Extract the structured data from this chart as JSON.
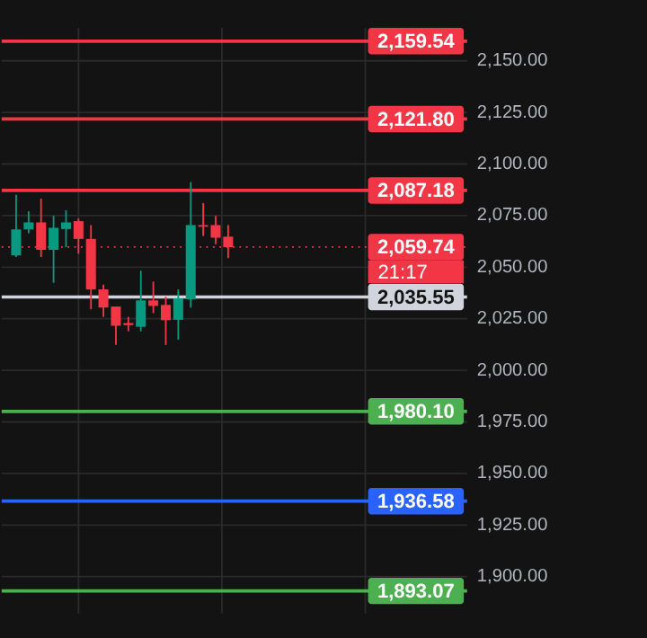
{
  "chart_data": {
    "type": "candlestick",
    "categories": [
      null,
      null,
      null,
      null,
      null,
      null,
      null,
      null,
      null,
      null,
      null,
      null,
      null,
      null,
      null,
      null,
      null,
      null,
      null,
      null,
      null,
      null,
      null,
      null,
      null,
      null,
      null,
      null,
      null,
      null,
      null,
      null,
      null,
      null,
      null,
      null
    ],
    "ohlc": [
      [
        2055.7,
        2085.1,
        2054.9,
        2068.3
      ],
      [
        2068.3,
        2077.1,
        2066.4,
        2071.7
      ],
      [
        2071.7,
        2083.2,
        2054.9,
        2058.4
      ],
      [
        2058.4,
        2074.9,
        2042.4,
        2069.1
      ],
      [
        2068.5,
        2077.6,
        2059.7,
        2071.7
      ],
      [
        2072.3,
        2073.6,
        2056.5,
        2063.7
      ],
      [
        2063.7,
        2070.4,
        2029.6,
        2039.2
      ],
      [
        2039.2,
        2041.6,
        2025.9,
        2030.4
      ],
      [
        2030.9,
        2030.9,
        2012.3,
        2021.6
      ],
      [
        2022.9,
        2025.9,
        2018.9,
        2021.9
      ],
      [
        2021.1,
        2048.3,
        2018.9,
        2033.9
      ],
      [
        2033.9,
        2043.0,
        2027.7,
        2031.2
      ],
      [
        2031.7,
        2035.7,
        2012.3,
        2024.3
      ],
      [
        2024.5,
        2039.2,
        2014.9,
        2034.9
      ],
      [
        2034.4,
        2091.2,
        2030.4,
        2070.4
      ],
      [
        2070.4,
        2081.1,
        2065.1,
        2069.6
      ],
      [
        2070.4,
        2074.9,
        2061.1,
        2064.3
      ],
      [
        2064.8,
        2070.4,
        2054.4,
        2059.7
      ],
      null,
      null,
      null,
      null,
      null,
      null,
      null,
      null,
      null,
      null,
      null,
      null,
      null,
      null,
      null,
      null,
      null,
      null
    ],
    "colors": [
      "#089981",
      "#089981",
      "#f23645",
      "#089981",
      "#089981",
      "#f23645",
      "#f23645",
      "#f23645",
      "#f23645",
      "#f23645",
      "#089981",
      "#f23645",
      "#f23645",
      "#089981",
      "#089981",
      "#f23645",
      "#f23645",
      "#f23645",
      null,
      null,
      null,
      null,
      null,
      null,
      null,
      null,
      null,
      null,
      null,
      null,
      null,
      null,
      null,
      null,
      null,
      null
    ],
    "ylim": [
      1882,
      2166
    ],
    "yticks": [
      {
        "value": 1900,
        "label": "1,900.00"
      },
      {
        "value": 1925,
        "label": "1,925.00"
      },
      {
        "value": 1950,
        "label": "1,950.00"
      },
      {
        "value": 1975,
        "label": "1,975.00"
      },
      {
        "value": 2000,
        "label": "2,000.00"
      },
      {
        "value": 2025,
        "label": "2,025.00"
      },
      {
        "value": 2050,
        "label": "2,050.00"
      },
      {
        "value": 2075,
        "label": "2,075.00"
      },
      {
        "value": 2100,
        "label": "2,100.00"
      },
      {
        "value": 2125,
        "label": "2,125.00"
      },
      {
        "value": 2150,
        "label": "2,150.00"
      }
    ],
    "ref_lines": [
      {
        "axis": "y",
        "value": 2159.54,
        "label": "2,159.54",
        "color": "#f23645",
        "line_style": "solid"
      },
      {
        "axis": "y",
        "value": 2121.8,
        "label": "2,121.80",
        "color": "#f23645",
        "line_style": "solid"
      },
      {
        "axis": "y",
        "value": 2087.18,
        "label": "2,087.18",
        "color": "#f23645",
        "line_style": "solid"
      },
      {
        "axis": "y",
        "value": 2059.74,
        "label": "2,059.74",
        "color": "#f23645",
        "line_style": "dotted"
      },
      {
        "axis": "y",
        "value": 2035.55,
        "label": "2,035.55",
        "color": "#d1d4dc",
        "line_style": "solid"
      },
      {
        "axis": "y",
        "value": 1980.1,
        "label": "1,980.10",
        "color": "#4caf50",
        "line_style": "solid"
      },
      {
        "axis": "y",
        "value": 1936.58,
        "label": "1,936.58",
        "color": "#2962ff",
        "line_style": "solid"
      },
      {
        "axis": "y",
        "value": 1893.07,
        "label": "1,893.07",
        "color": "#4caf50",
        "line_style": "solid"
      }
    ],
    "annotations": [
      {
        "text": "21:17",
        "y": 2059.74
      }
    ],
    "grid": true,
    "tick_labels": "y"
  }
}
